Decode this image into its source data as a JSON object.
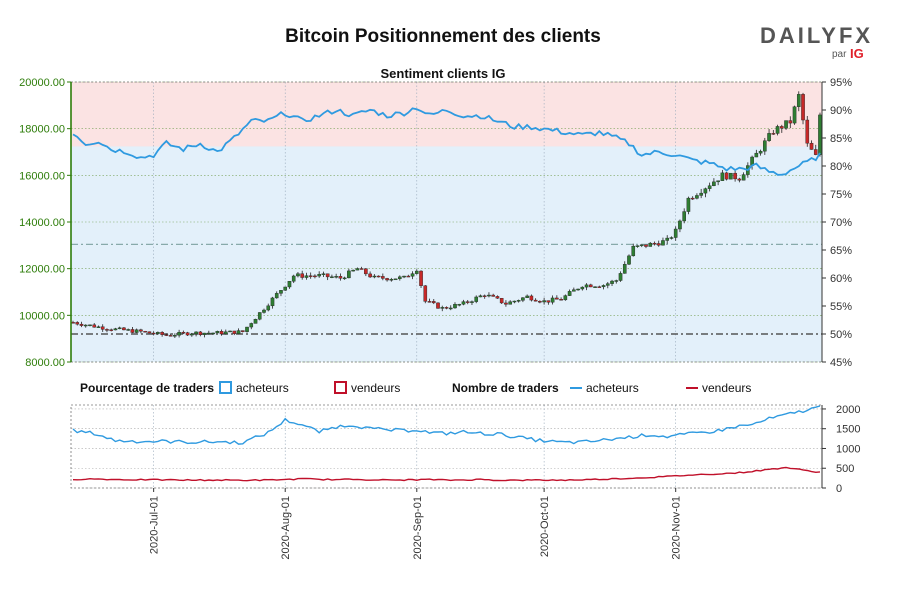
{
  "chart_data": {
    "title": "Bitcoin Positionnement des clients",
    "subtitle": "Sentiment clients IG",
    "brand": {
      "name": "DAILYFX",
      "by": "par",
      "partner": "IG"
    },
    "price_axis": {
      "ylim": [
        8000,
        20000
      ],
      "ticks": [
        "8000.00",
        "10000.00",
        "12000.00",
        "14000.00",
        "16000.00",
        "18000.00",
        "20000.00"
      ]
    },
    "sentiment_axis": {
      "ylim": [
        45,
        95
      ],
      "ticks": [
        "45%",
        "50%",
        "55%",
        "60%",
        "65%",
        "70%",
        "75%",
        "80%",
        "85%",
        "90%",
        "95%"
      ]
    },
    "count_axis": {
      "ylim": [
        0,
        2100
      ],
      "ticks": [
        "0",
        "500",
        "1000",
        "1500",
        "2000"
      ]
    },
    "x_ticks": [
      "2020-Jul-01",
      "2020-Aug-01",
      "2020-Sep-01",
      "2020-Oct-01",
      "2020-Nov-01"
    ],
    "x_tick_days": [
      19,
      50,
      81,
      111,
      142
    ],
    "total_days": 176,
    "reference_lines_pct": [
      50,
      66
    ],
    "legend": {
      "pct_title": "Pourcentage de traders",
      "count_title": "Nombre de traders",
      "buyers": "acheteurs",
      "sellers": "vendeurs"
    },
    "colors": {
      "up": "#2e7d32",
      "down": "#c62828",
      "buyers": "#2f9ae0",
      "sellers": "#c0102a",
      "long_zone": "#e3f0fa",
      "short_zone": "#fbe3e3",
      "axis_left": "#2e7d0a"
    },
    "price_knots": [
      [
        0,
        9700
      ],
      [
        6,
        9500
      ],
      [
        10,
        9400
      ],
      [
        16,
        9300
      ],
      [
        22,
        9150
      ],
      [
        28,
        9250
      ],
      [
        34,
        9250
      ],
      [
        40,
        9300
      ],
      [
        46,
        10500
      ],
      [
        52,
        11700
      ],
      [
        58,
        11700
      ],
      [
        63,
        11600
      ],
      [
        67,
        12000
      ],
      [
        71,
        11600
      ],
      [
        78,
        11600
      ],
      [
        81,
        12000
      ],
      [
        83,
        10600
      ],
      [
        87,
        10300
      ],
      [
        92,
        10500
      ],
      [
        97,
        10900
      ],
      [
        102,
        10500
      ],
      [
        107,
        10800
      ],
      [
        111,
        10600
      ],
      [
        115,
        10700
      ],
      [
        120,
        11300
      ],
      [
        125,
        11300
      ],
      [
        128,
        11500
      ],
      [
        132,
        12900
      ],
      [
        135,
        13000
      ],
      [
        140,
        13200
      ],
      [
        142,
        13600
      ],
      [
        145,
        15000
      ],
      [
        149,
        15500
      ],
      [
        153,
        16000
      ],
      [
        157,
        15900
      ],
      [
        161,
        16900
      ],
      [
        165,
        17900
      ],
      [
        169,
        18300
      ],
      [
        171,
        19400
      ],
      [
        173,
        17300
      ],
      [
        175,
        16800
      ],
      [
        176,
        18600
      ]
    ],
    "sentiment_knots": [
      [
        0,
        86
      ],
      [
        3,
        84
      ],
      [
        6,
        84.5
      ],
      [
        9,
        83
      ],
      [
        13,
        82.5
      ],
      [
        16,
        81.5
      ],
      [
        19,
        82
      ],
      [
        22,
        84
      ],
      [
        26,
        83
      ],
      [
        30,
        84
      ],
      [
        34,
        82.5
      ],
      [
        38,
        85
      ],
      [
        42,
        88
      ],
      [
        46,
        88
      ],
      [
        50,
        89.5
      ],
      [
        54,
        88
      ],
      [
        58,
        89
      ],
      [
        62,
        90
      ],
      [
        66,
        89
      ],
      [
        70,
        90
      ],
      [
        74,
        89
      ],
      [
        78,
        89.5
      ],
      [
        81,
        90.5
      ],
      [
        84,
        89
      ],
      [
        88,
        90
      ],
      [
        92,
        89
      ],
      [
        96,
        89
      ],
      [
        100,
        88
      ],
      [
        104,
        87
      ],
      [
        108,
        87
      ],
      [
        112,
        86.5
      ],
      [
        116,
        86
      ],
      [
        120,
        85.5
      ],
      [
        124,
        86
      ],
      [
        128,
        85
      ],
      [
        131,
        84
      ],
      [
        134,
        82
      ],
      [
        138,
        82.5
      ],
      [
        142,
        82
      ],
      [
        146,
        81
      ],
      [
        150,
        80.5
      ],
      [
        154,
        79.5
      ],
      [
        158,
        79.5
      ],
      [
        161,
        80
      ],
      [
        164,
        79
      ],
      [
        167,
        78.5
      ],
      [
        171,
        80
      ],
      [
        174,
        81
      ],
      [
        176,
        82
      ]
    ],
    "buyers_knots": [
      [
        0,
        1450
      ],
      [
        5,
        1380
      ],
      [
        10,
        1200
      ],
      [
        16,
        1180
      ],
      [
        22,
        1180
      ],
      [
        28,
        1160
      ],
      [
        34,
        1170
      ],
      [
        40,
        1150
      ],
      [
        46,
        1400
      ],
      [
        50,
        1720
      ],
      [
        54,
        1600
      ],
      [
        58,
        1420
      ],
      [
        62,
        1550
      ],
      [
        66,
        1600
      ],
      [
        70,
        1500
      ],
      [
        74,
        1470
      ],
      [
        78,
        1450
      ],
      [
        81,
        1480
      ],
      [
        84,
        1400
      ],
      [
        88,
        1380
      ],
      [
        92,
        1420
      ],
      [
        96,
        1380
      ],
      [
        100,
        1370
      ],
      [
        104,
        1300
      ],
      [
        108,
        1230
      ],
      [
        112,
        1180
      ],
      [
        116,
        1150
      ],
      [
        120,
        1160
      ],
      [
        124,
        1200
      ],
      [
        128,
        1250
      ],
      [
        132,
        1300
      ],
      [
        136,
        1350
      ],
      [
        140,
        1300
      ],
      [
        144,
        1350
      ],
      [
        148,
        1400
      ],
      [
        152,
        1450
      ],
      [
        156,
        1550
      ],
      [
        160,
        1600
      ],
      [
        164,
        1750
      ],
      [
        168,
        1850
      ],
      [
        172,
        1950
      ],
      [
        176,
        2050
      ]
    ],
    "sellers_knots": [
      [
        0,
        220
      ],
      [
        5,
        230
      ],
      [
        10,
        215
      ],
      [
        16,
        210
      ],
      [
        22,
        205
      ],
      [
        28,
        200
      ],
      [
        34,
        200
      ],
      [
        40,
        195
      ],
      [
        46,
        200
      ],
      [
        50,
        215
      ],
      [
        54,
        230
      ],
      [
        58,
        220
      ],
      [
        62,
        210
      ],
      [
        66,
        220
      ],
      [
        70,
        210
      ],
      [
        74,
        200
      ],
      [
        78,
        205
      ],
      [
        81,
        210
      ],
      [
        84,
        215
      ],
      [
        88,
        200
      ],
      [
        92,
        205
      ],
      [
        96,
        215
      ],
      [
        100,
        200
      ],
      [
        104,
        195
      ],
      [
        108,
        200
      ],
      [
        112,
        200
      ],
      [
        116,
        200
      ],
      [
        120,
        210
      ],
      [
        124,
        220
      ],
      [
        128,
        235
      ],
      [
        132,
        250
      ],
      [
        136,
        270
      ],
      [
        140,
        290
      ],
      [
        144,
        320
      ],
      [
        148,
        340
      ],
      [
        152,
        360
      ],
      [
        156,
        380
      ],
      [
        160,
        420
      ],
      [
        164,
        470
      ],
      [
        168,
        520
      ],
      [
        172,
        450
      ],
      [
        176,
        400
      ]
    ]
  }
}
